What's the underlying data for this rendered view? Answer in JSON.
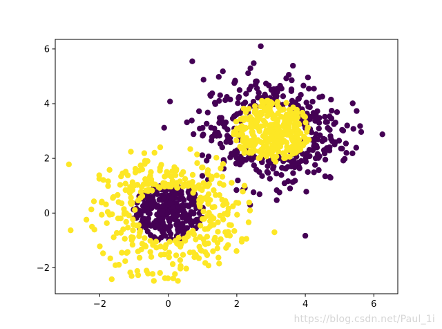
{
  "chart_data": {
    "type": "scatter",
    "title": "",
    "xlabel": "",
    "ylabel": "",
    "xlim": [
      -3.3,
      6.7
    ],
    "ylim": [
      -2.95,
      6.35
    ],
    "xticks": [
      -2,
      0,
      2,
      4,
      6
    ],
    "yticks": [
      -2,
      0,
      2,
      4,
      6
    ],
    "grid": false,
    "legend": "none",
    "colors": {
      "class_0": "#440154",
      "class_1": "#fde725"
    },
    "clusters": [
      {
        "label": 0,
        "center": [
          0.0,
          0.0
        ],
        "inner_radius": 0.0,
        "outer_radius": 1.05,
        "count": 300
      },
      {
        "label": 1,
        "center": [
          0.0,
          0.0
        ],
        "inner_radius": 0.95,
        "outer_radius": 2.5,
        "count": 340
      },
      {
        "label": 1,
        "center": [
          3.0,
          3.0
        ],
        "inner_radius": 0.0,
        "outer_radius": 1.15,
        "count": 300
      },
      {
        "label": 0,
        "center": [
          3.0,
          3.0
        ],
        "inner_radius": 0.95,
        "outer_radius": 2.8,
        "count": 340
      }
    ],
    "outliers": [
      {
        "x": -2.9,
        "y": 1.78,
        "label": 1
      },
      {
        "x": -2.85,
        "y": -0.63,
        "label": 1
      },
      {
        "x": -1.65,
        "y": -2.42,
        "label": 1
      },
      {
        "x": -1.07,
        "y": -2.3,
        "label": 1
      },
      {
        "x": -0.42,
        "y": -2.48,
        "label": 1
      },
      {
        "x": -0.88,
        "y": -2.27,
        "label": 1
      },
      {
        "x": 0.28,
        "y": -2.48,
        "label": 1
      },
      {
        "x": 3.1,
        "y": -0.7,
        "label": 1
      },
      {
        "x": 6.25,
        "y": 2.88,
        "label": 0
      },
      {
        "x": 5.6,
        "y": 3.18,
        "label": 0
      },
      {
        "x": 2.7,
        "y": 6.1,
        "label": 0
      },
      {
        "x": 4.0,
        "y": -0.83,
        "label": 0
      },
      {
        "x": 0.7,
        "y": 5.55,
        "label": 0
      },
      {
        "x": 0.05,
        "y": 4.08,
        "label": 0
      },
      {
        "x": -0.12,
        "y": 3.12,
        "label": 0
      },
      {
        "x": 5.15,
        "y": 1.98,
        "label": 0
      },
      {
        "x": 5.2,
        "y": 2.2,
        "label": 0
      }
    ]
  },
  "watermark": "https://blog.csdn.net/Paul_1i"
}
